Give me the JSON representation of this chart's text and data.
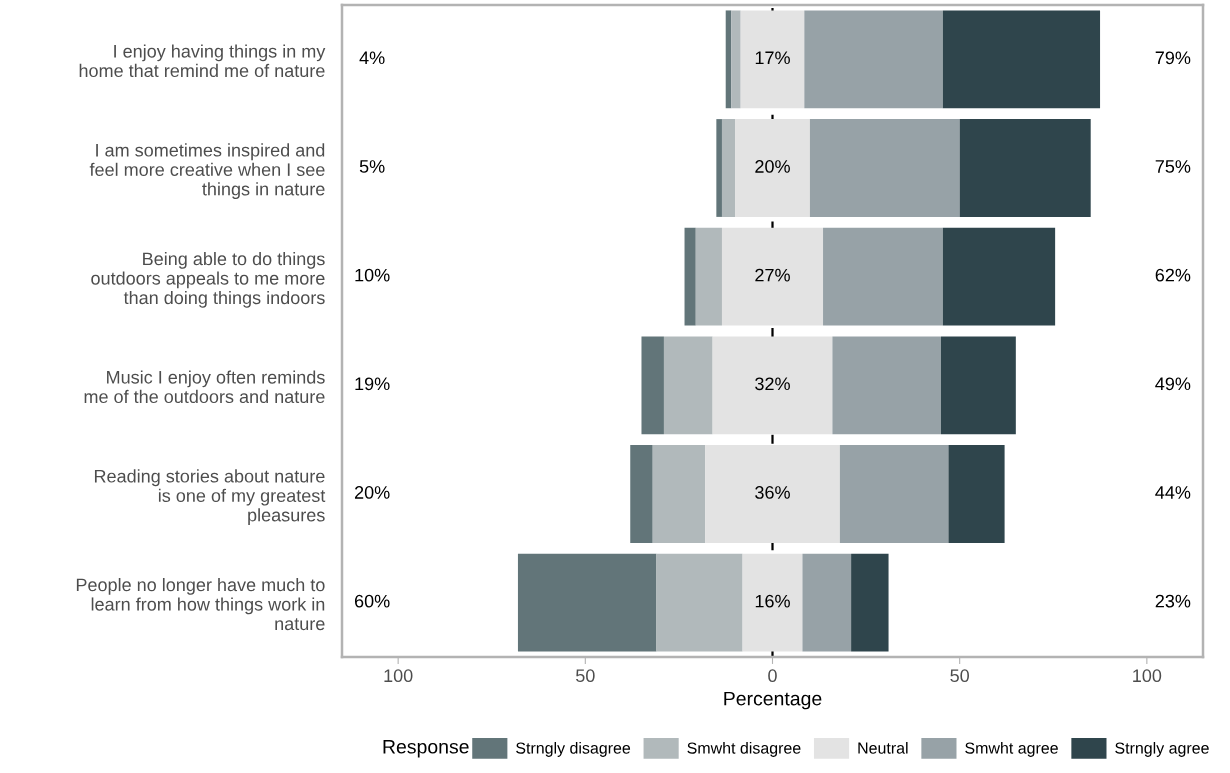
{
  "chart_data": {
    "type": "bar",
    "orientation": "horizontal",
    "xlabel": "Percentage",
    "legend_title": "Response",
    "legend": "bottom",
    "categories": [
      "I enjoy having things in my home that remind me of nature",
      "I am sometimes inspired and feel more creative when I see things in nature",
      "Being able to do things outdoors appeals to me more than doing things indoors",
      "Music I enjoy often reminds me of the outdoors and nature",
      "Reading stories about nature is one of my greatest pleasures",
      "People no longer have much to learn from how things work in nature"
    ],
    "series": [
      {
        "name": "Strngly disagree",
        "color": "#627579",
        "values": [
          1.5,
          1.5,
          3,
          6,
          6,
          37
        ],
        "base": [
          -12.5,
          -15,
          -23.5,
          -35,
          -38,
          -68
        ]
      },
      {
        "name": "Smwht disagree",
        "color": "#b1b9bb",
        "values": [
          2.5,
          3.5,
          7,
          13,
          14,
          23
        ],
        "base": [
          -11,
          -13.5,
          -20.5,
          -29,
          -32,
          -31
        ]
      },
      {
        "name": "Neutral",
        "color": "#e3e3e3",
        "values": [
          17,
          20,
          27,
          32,
          36,
          16
        ],
        "base": [
          -8.5,
          -10,
          -13.5,
          -16,
          -18,
          -8
        ],
        "value_labels": [
          "17%",
          "20%",
          "27%",
          "32%",
          "36%",
          "16%"
        ]
      },
      {
        "name": "Smwht agree",
        "color": "#97a2a7",
        "values": [
          37,
          40,
          32,
          29,
          29,
          13
        ],
        "base": [
          8.5,
          10,
          13.5,
          16,
          18,
          8
        ]
      },
      {
        "name": "Strngly agree",
        "color": "#2f454c",
        "values": [
          42,
          35,
          30,
          20,
          15,
          10
        ],
        "base": [
          45.5,
          50,
          45.5,
          45,
          47,
          21
        ]
      }
    ],
    "xlim": [
      -115,
      115
    ],
    "xticks": [
      {
        "value": -100,
        "label": "100"
      },
      {
        "value": -50,
        "label": "50"
      },
      0,
      50,
      {
        "value": 100,
        "label": "100"
      }
    ],
    "ref_lines": [
      {
        "axis": "x",
        "value": 0,
        "color": "#000000",
        "line_style": "dashed"
      }
    ],
    "annotations": [
      "4%",
      "5%",
      "10%",
      "19%",
      "20%",
      "60%",
      "79%",
      "75%",
      "62%",
      "49%",
      "44%",
      "23%"
    ]
  }
}
